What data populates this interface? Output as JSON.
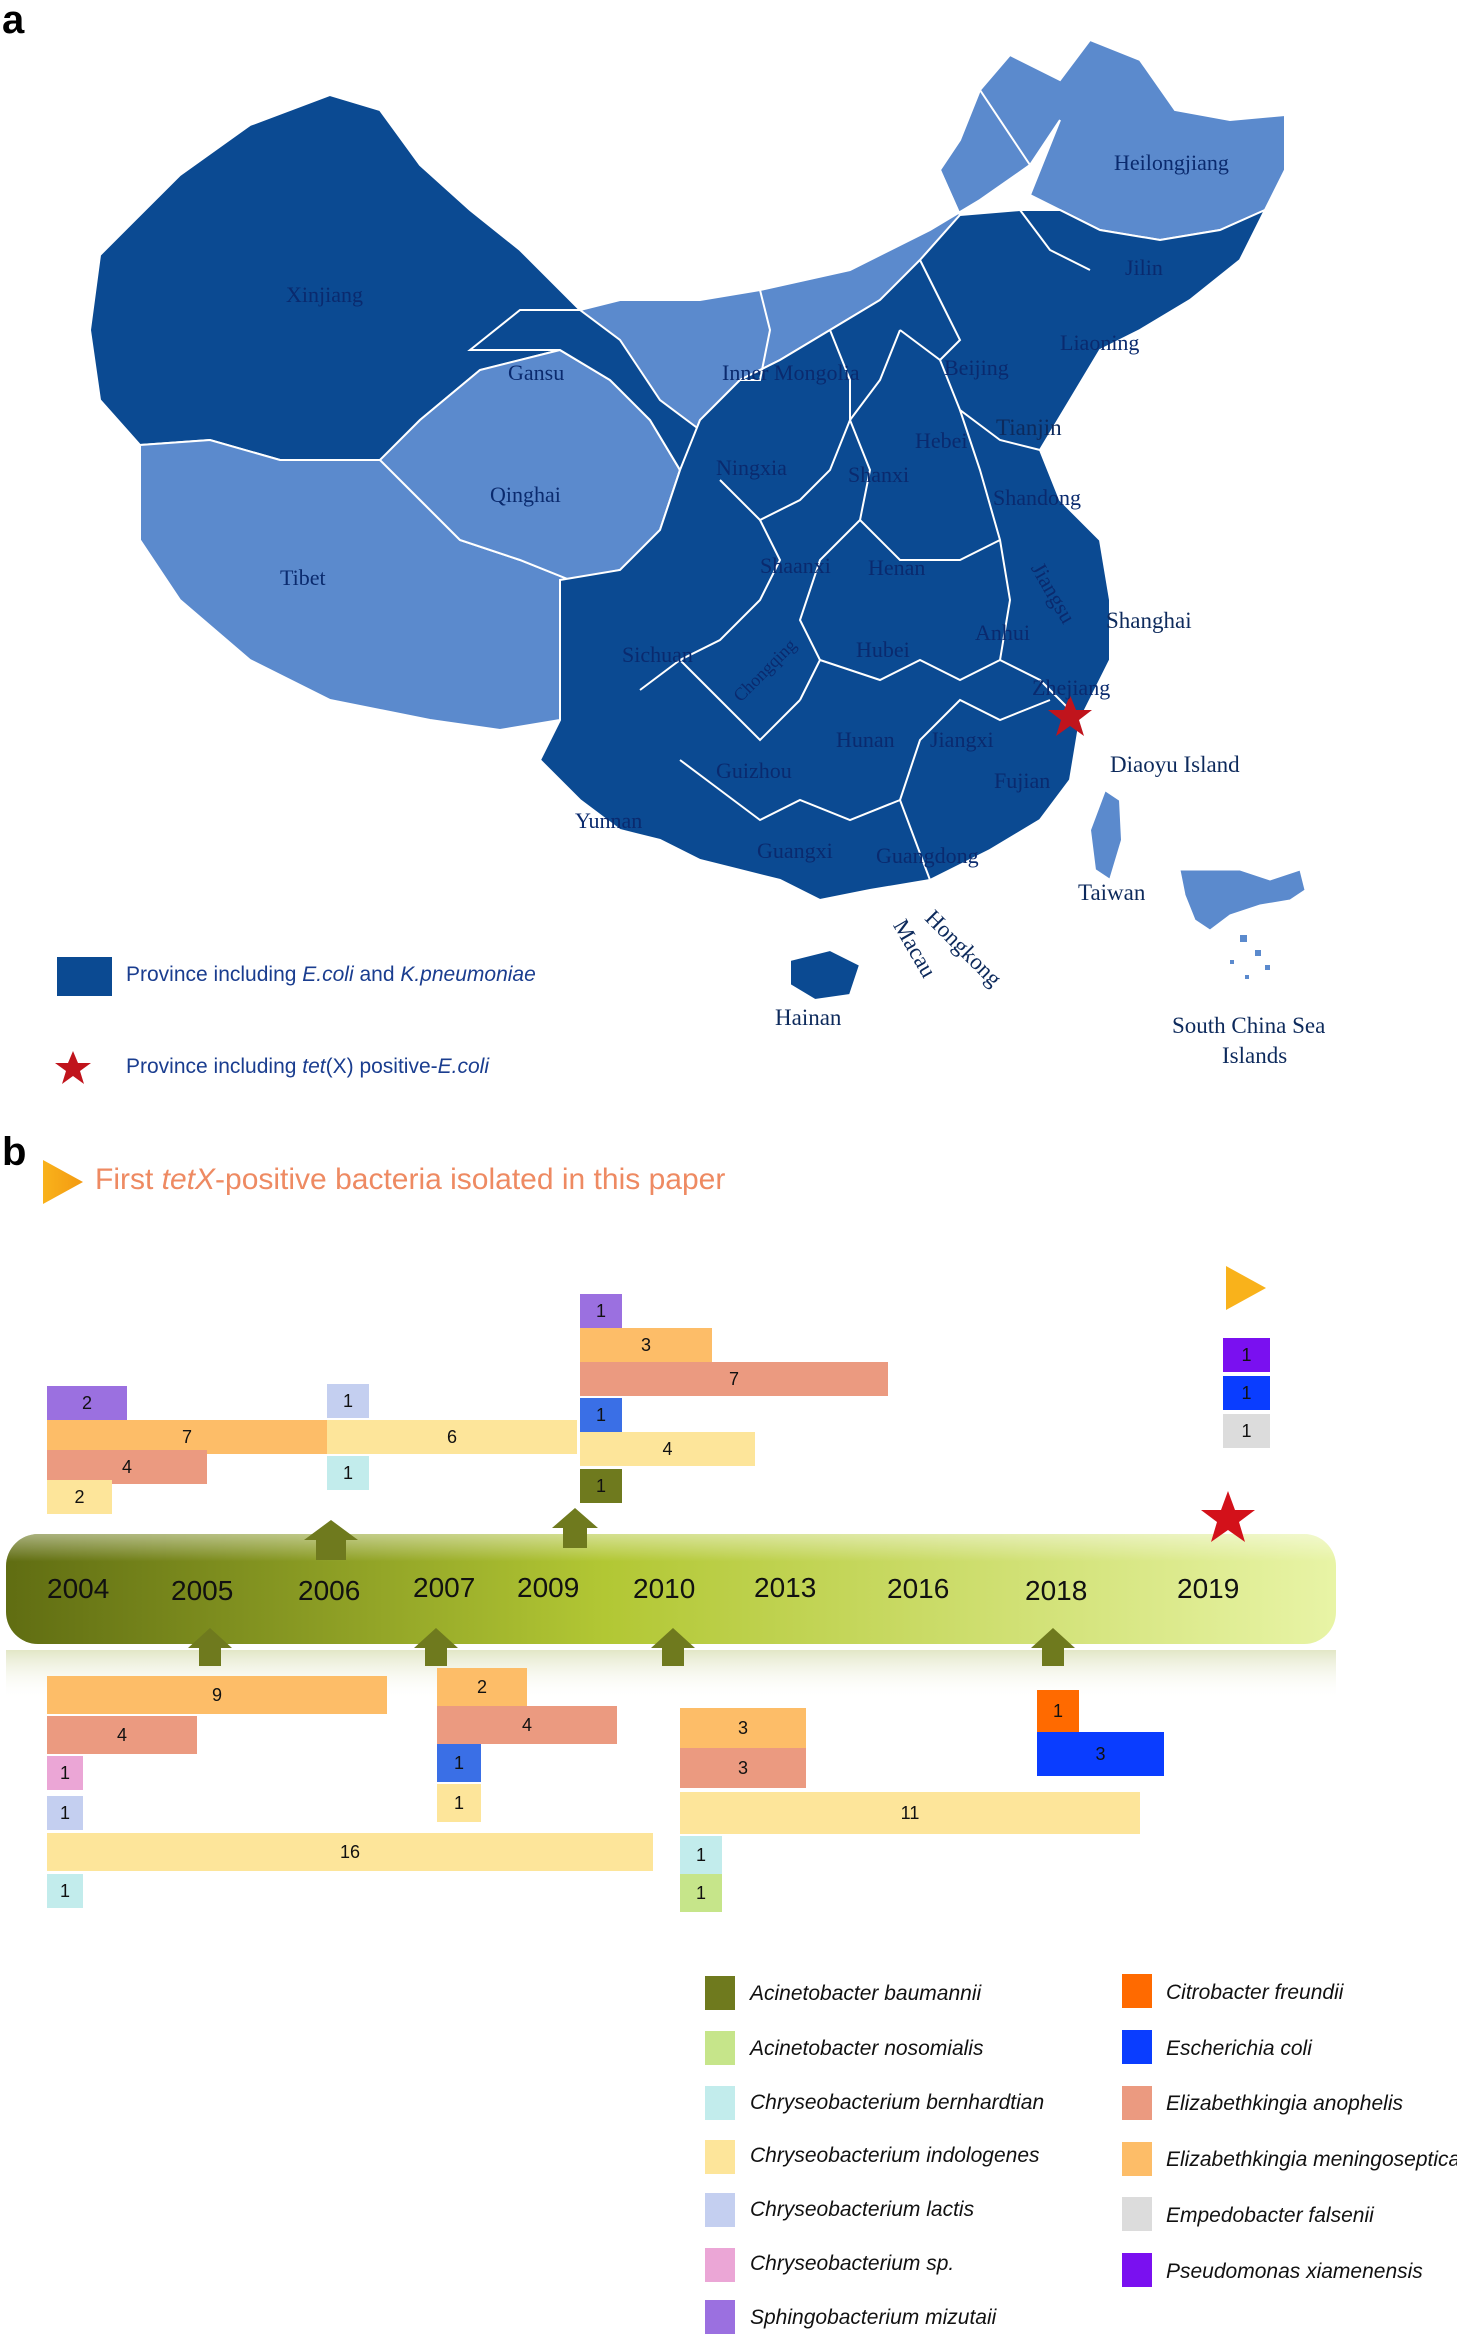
{
  "panel_a": {
    "label": "a",
    "regions": {
      "xinjiang": "Xinjiang",
      "tibet": "Tibet",
      "qinghai": "Qinghai",
      "gansu": "Gansu",
      "inner_mongolia": "Inner Mongolia",
      "heilongjiang": "Heilongjiang",
      "jilin": "Jilin",
      "liaoning": "Liaoning",
      "beijing": "Beijing",
      "tianjin": "Tianjin",
      "hebei": "Hebei",
      "ningxia": "Ningxia",
      "shanxi": "Shanxi",
      "shandong": "Shandong",
      "shaanxi": "Shaanxi",
      "henan": "Henan",
      "jiangsu": "Jiangsu",
      "shanghai": "Shanghai",
      "anhui": "Anhui",
      "sichuan": "Sichuan",
      "chongqing": "Chongqing",
      "hubei": "Hubei",
      "zhejiang": "Zhejiang",
      "hunan": "Hunan",
      "jiangxi": "Jiangxi",
      "guizhou": "Guizhou",
      "fujian": "Fujian",
      "yunnan": "Yunnan",
      "guangxi": "Guangxi",
      "guangdong": "Guangdong",
      "hongkong": "Hongkong",
      "macau": "Macau",
      "hainan": "Hainan",
      "taiwan": "Taiwan",
      "diaoyu": "Diaoyu Island",
      "south_china_sea_1": "South China Sea",
      "south_china_sea_2": "Islands"
    },
    "legend": {
      "item1_prefix": "Province including ",
      "item1_sp1": "E.coli",
      "item1_mid": " and ",
      "item1_sp2": "K.pneumoniae",
      "item2_prefix": "Province including ",
      "item2_gene": "tet",
      "item2_mid": "(X) positive-",
      "item2_sp": "E.coli"
    },
    "colors": {
      "dark": "#0b4a92",
      "light": "#5b8acd",
      "star": "#c0141c"
    }
  },
  "panel_b": {
    "label": "b",
    "header_pre": "First ",
    "header_gene": "tetX",
    "header_post": "-positive bacteria isolated in this paper",
    "years": [
      "2004",
      "2005",
      "2006",
      "2007",
      "2009",
      "2010",
      "2013",
      "2016",
      "2018",
      "2019"
    ],
    "bars_above": [
      {
        "value": "2",
        "species": "Sphingobacterium mizutaii"
      },
      {
        "value": "7",
        "species": "Elizabethkingia meningoseptica"
      },
      {
        "value": "4",
        "species": "Elizabethkingia anophelis"
      },
      {
        "value": "2",
        "species": "Chryseobacterium indologenes"
      },
      {
        "value": "1",
        "species": "Chryseobacterium lactis"
      },
      {
        "value": "6",
        "species": "Chryseobacterium indologenes"
      },
      {
        "value": "1",
        "species": "Chryseobacterium bernhardtian"
      },
      {
        "value": "1",
        "species": "Sphingobacterium mizutaii"
      },
      {
        "value": "3",
        "species": "Elizabethkingia meningoseptica"
      },
      {
        "value": "7",
        "species": "Elizabethkingia anophelis"
      },
      {
        "value": "1",
        "species": "Escherichia coli"
      },
      {
        "value": "4",
        "species": "Chryseobacterium indologenes"
      },
      {
        "value": "1",
        "species": "Acinetobacter baumannii"
      },
      {
        "value": "1",
        "species": "Pseudomonas xiamenensis"
      },
      {
        "value": "1",
        "species": "Escherichia coli"
      },
      {
        "value": "1",
        "species": "Empedobacter falsenii"
      }
    ],
    "bars_below": [
      {
        "value": "9",
        "species": "Elizabethkingia meningoseptica"
      },
      {
        "value": "4",
        "species": "Elizabethkingia anophelis"
      },
      {
        "value": "1",
        "species": "Chryseobacterium sp."
      },
      {
        "value": "1",
        "species": "Chryseobacterium lactis"
      },
      {
        "value": "16",
        "species": "Chryseobacterium indologenes"
      },
      {
        "value": "1",
        "species": "Chryseobacterium bernhardtian"
      },
      {
        "value": "2",
        "species": "Elizabethkingia meningoseptica"
      },
      {
        "value": "4",
        "species": "Elizabethkingia anophelis"
      },
      {
        "value": "1",
        "species": "Escherichia coli"
      },
      {
        "value": "1",
        "species": "Chryseobacterium indologenes"
      },
      {
        "value": "3",
        "species": "Elizabethkingia meningoseptica"
      },
      {
        "value": "3",
        "species": "Elizabethkingia anophelis"
      },
      {
        "value": "11",
        "species": "Chryseobacterium indologenes"
      },
      {
        "value": "1",
        "species": "Chryseobacterium bernhardtian"
      },
      {
        "value": "1",
        "species": "Acinetobacter nosomialis"
      },
      {
        "value": "1",
        "species": "Citrobacter freundii"
      },
      {
        "value": "3",
        "species": "Escherichia coli"
      }
    ],
    "legend": [
      {
        "name": "Acinetobacter baumannii",
        "color": "#6f7a1e"
      },
      {
        "name": "Acinetobacter nosomialis",
        "color": "#c6e58a"
      },
      {
        "name": "Chryseobacterium bernhardtian",
        "color": "#c2ecec"
      },
      {
        "name": "Chryseobacterium indologenes",
        "color": "#fde59a"
      },
      {
        "name": "Chryseobacterium lactis",
        "color": "#c4cff0"
      },
      {
        "name": "Chryseobacterium sp.",
        "color": "#eba6d6"
      },
      {
        "name": "Sphingobacterium mizutaii",
        "color": "#9b70e0"
      },
      {
        "name": "Citrobacter freundii",
        "color": "#ff6a00"
      },
      {
        "name": "Escherichia coli",
        "color": "#0a3dff"
      },
      {
        "name": "Elizabethkingia anophelis",
        "color": "#eb9a80"
      },
      {
        "name": "Elizabethkingia meningoseptica",
        "color": "#fdbd68"
      },
      {
        "name": "Empedobacter falsenii",
        "color": "#dcdcdc"
      },
      {
        "name": "Pseudomonas xiamenensis",
        "color": "#7a10f0"
      }
    ]
  }
}
